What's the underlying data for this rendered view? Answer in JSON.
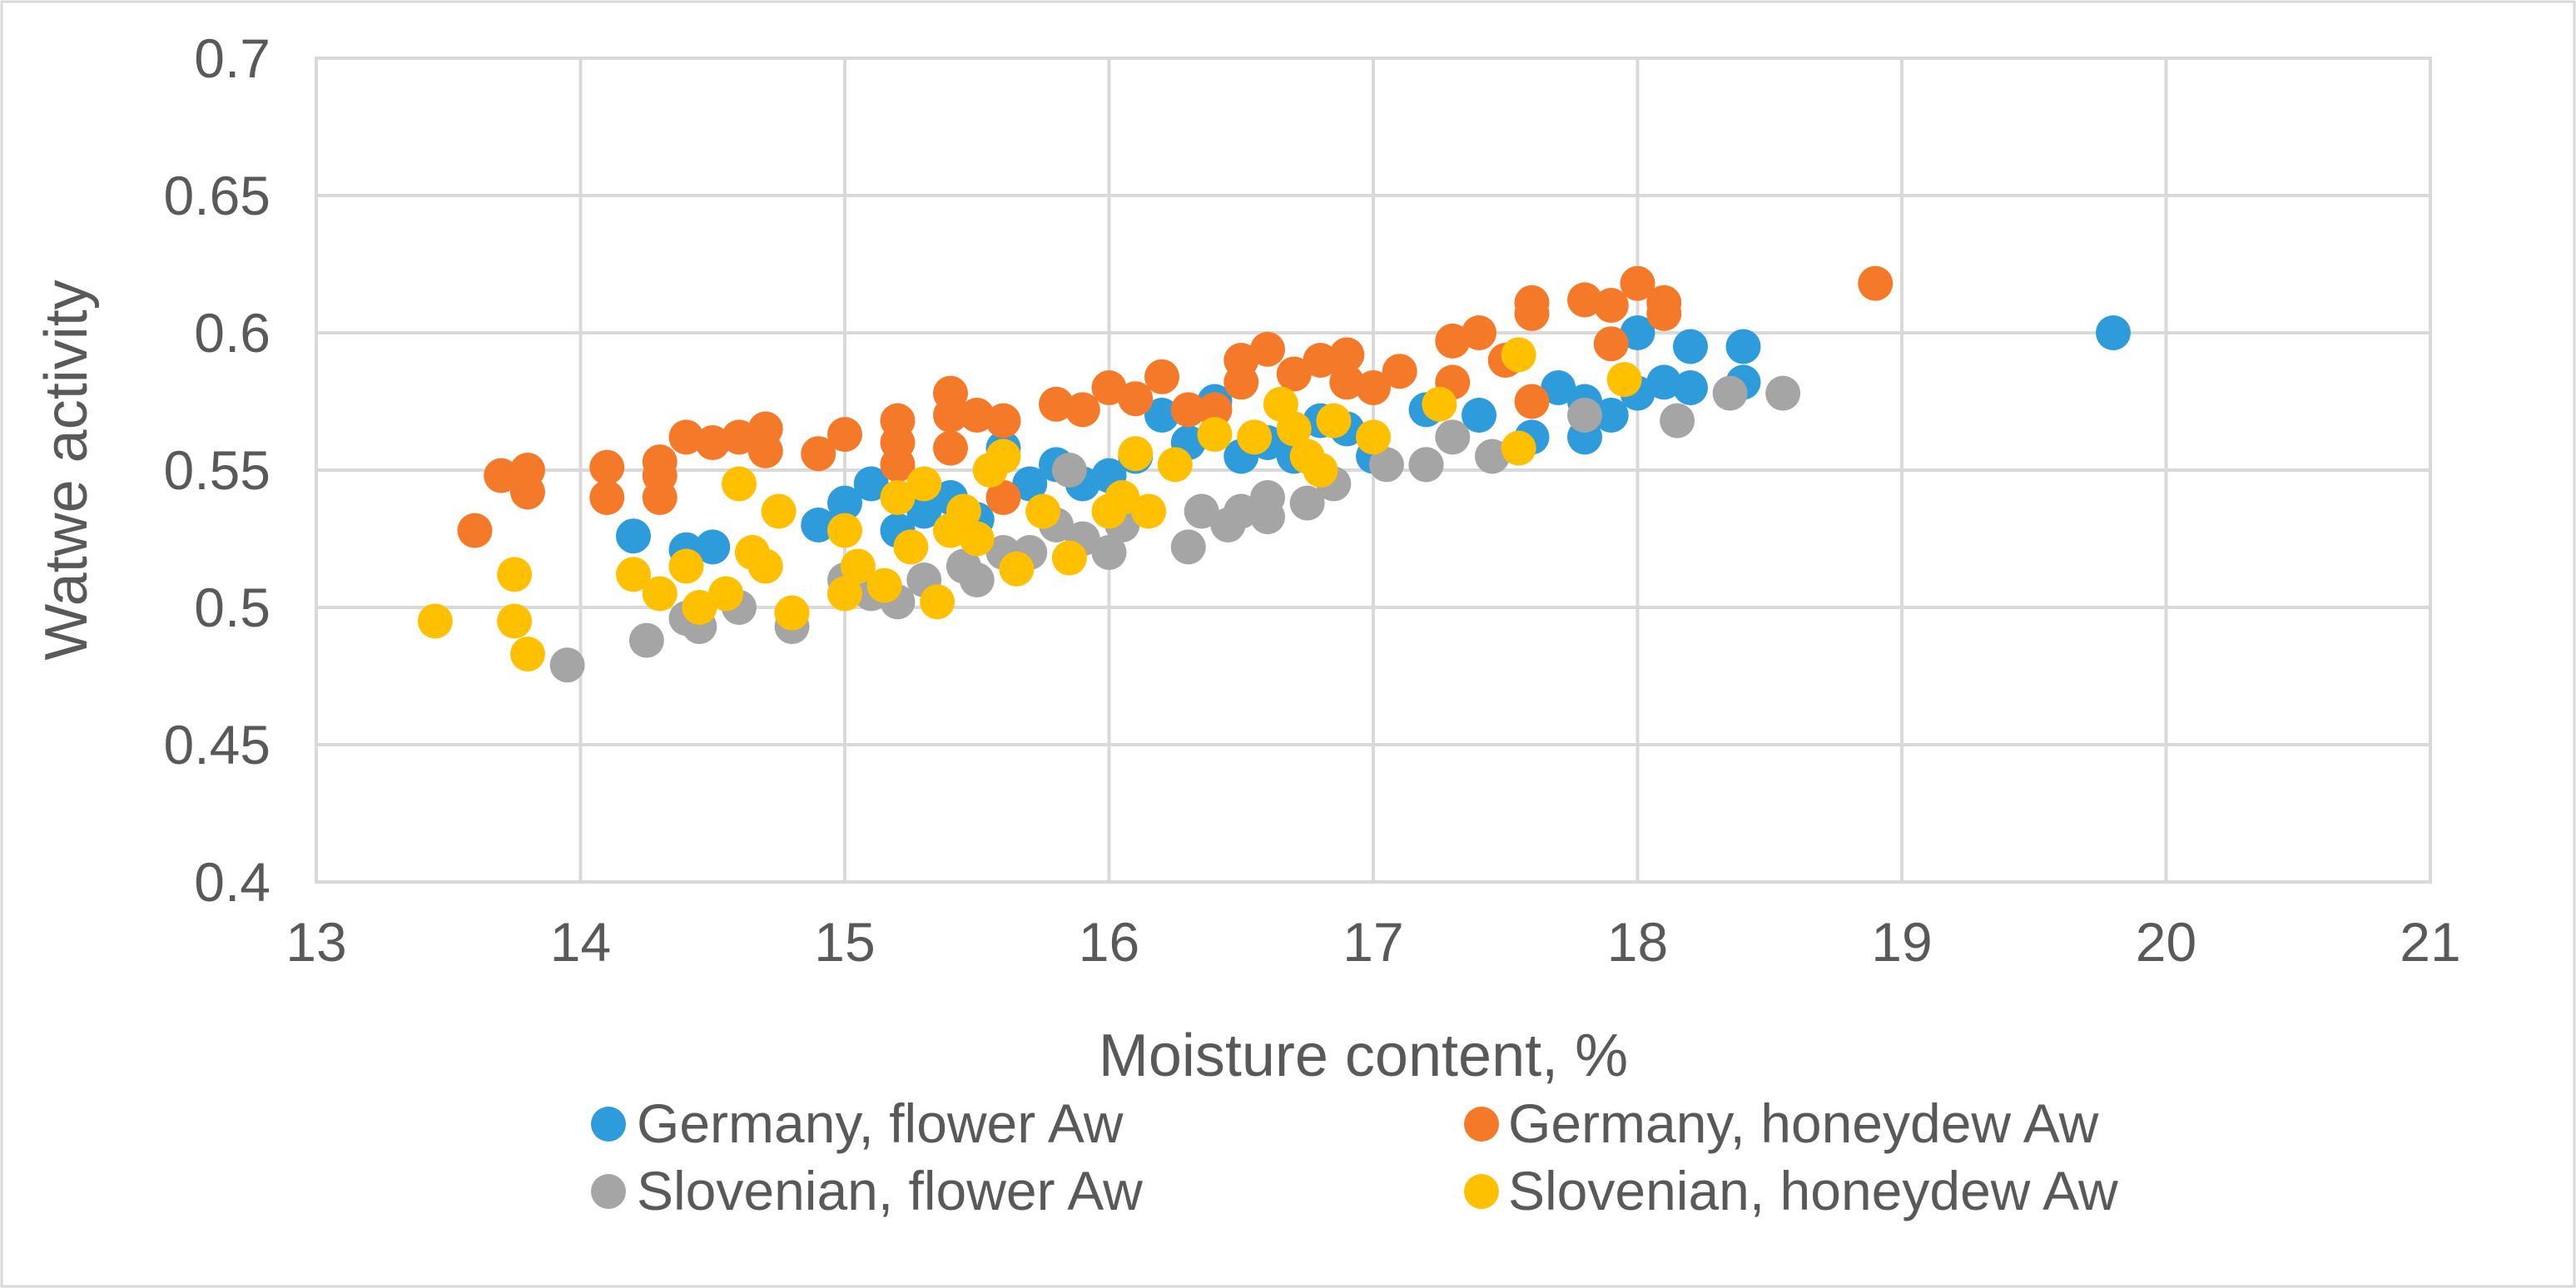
{
  "chart_data": {
    "type": "scatter",
    "title": "",
    "xlabel": "Moisture content, %",
    "ylabel": "Watwe activity",
    "xlim": [
      13,
      21
    ],
    "ylim": [
      0.4,
      0.7
    ],
    "x_ticks": [
      "13",
      "14",
      "15",
      "16",
      "17",
      "18",
      "19",
      "20",
      "21"
    ],
    "y_ticks": [
      "0.4",
      "0.45",
      "0.5",
      "0.55",
      "0.6",
      "0.65",
      "0.7"
    ],
    "grid": true,
    "legend_position": "bottom",
    "series": [
      {
        "name": "Germany,  flower Aw",
        "color": "#2E9BDA",
        "points": [
          [
            14.2,
            0.526
          ],
          [
            14.4,
            0.521
          ],
          [
            14.5,
            0.522
          ],
          [
            14.9,
            0.53
          ],
          [
            15,
            0.538
          ],
          [
            15.1,
            0.545
          ],
          [
            15.2,
            0.528
          ],
          [
            15.3,
            0.535
          ],
          [
            15.4,
            0.54
          ],
          [
            15.5,
            0.532
          ],
          [
            15.6,
            0.558
          ],
          [
            15.7,
            0.545
          ],
          [
            15.8,
            0.552
          ],
          [
            15.9,
            0.545
          ],
          [
            16,
            0.548
          ],
          [
            16.1,
            0.555
          ],
          [
            16.2,
            0.57
          ],
          [
            16.3,
            0.56
          ],
          [
            16.4,
            0.575
          ],
          [
            16.5,
            0.555
          ],
          [
            16.6,
            0.56
          ],
          [
            16.7,
            0.555
          ],
          [
            16.8,
            0.568
          ],
          [
            16.9,
            0.565
          ],
          [
            17,
            0.555
          ],
          [
            17.2,
            0.552
          ],
          [
            17.2,
            0.572
          ],
          [
            17.4,
            0.57
          ],
          [
            17.6,
            0.562
          ],
          [
            17.7,
            0.58
          ],
          [
            17.8,
            0.575
          ],
          [
            17.8,
            0.562
          ],
          [
            17.9,
            0.57
          ],
          [
            18,
            0.578
          ],
          [
            18,
            0.6
          ],
          [
            18.1,
            0.582
          ],
          [
            18.2,
            0.58
          ],
          [
            18.2,
            0.595
          ],
          [
            18.4,
            0.582
          ],
          [
            18.4,
            0.595
          ],
          [
            19.8,
            0.6
          ]
        ]
      },
      {
        "name": "Germany,  honeydew Aw",
        "color": "#F47A2A",
        "points": [
          [
            13.6,
            0.528
          ],
          [
            13.7,
            0.548
          ],
          [
            13.8,
            0.542
          ],
          [
            13.8,
            0.55
          ],
          [
            14.1,
            0.54
          ],
          [
            14.1,
            0.551
          ],
          [
            14.3,
            0.54
          ],
          [
            14.3,
            0.548
          ],
          [
            14.3,
            0.553
          ],
          [
            14.4,
            0.562
          ],
          [
            14.5,
            0.56
          ],
          [
            14.6,
            0.562
          ],
          [
            14.7,
            0.557
          ],
          [
            14.7,
            0.565
          ],
          [
            14.9,
            0.556
          ],
          [
            15,
            0.563
          ],
          [
            15.2,
            0.568
          ],
          [
            15.2,
            0.56
          ],
          [
            15.2,
            0.552
          ],
          [
            15.4,
            0.578
          ],
          [
            15.4,
            0.57
          ],
          [
            15.4,
            0.558
          ],
          [
            15.5,
            0.57
          ],
          [
            15.6,
            0.54
          ],
          [
            15.6,
            0.568
          ],
          [
            15.8,
            0.574
          ],
          [
            15.9,
            0.572
          ],
          [
            16,
            0.58
          ],
          [
            16.1,
            0.576
          ],
          [
            16.2,
            0.584
          ],
          [
            16.3,
            0.572
          ],
          [
            16.4,
            0.572
          ],
          [
            16.5,
            0.582
          ],
          [
            16.5,
            0.59
          ],
          [
            16.6,
            0.594
          ],
          [
            16.7,
            0.585
          ],
          [
            16.8,
            0.59
          ],
          [
            16.9,
            0.592
          ],
          [
            16.9,
            0.582
          ],
          [
            17,
            0.58
          ],
          [
            17.1,
            0.586
          ],
          [
            17.3,
            0.582
          ],
          [
            17.3,
            0.597
          ],
          [
            17.4,
            0.6
          ],
          [
            17.5,
            0.59
          ],
          [
            17.6,
            0.611
          ],
          [
            17.6,
            0.607
          ],
          [
            17.6,
            0.575
          ],
          [
            17.8,
            0.612
          ],
          [
            17.9,
            0.61
          ],
          [
            17.9,
            0.596
          ],
          [
            18,
            0.618
          ],
          [
            18.1,
            0.611
          ],
          [
            18.1,
            0.607
          ],
          [
            18.9,
            0.618
          ]
        ]
      },
      {
        "name": "Slovenian, flower Aw",
        "color": "#A5A5A5",
        "points": [
          [
            13.95,
            0.479
          ],
          [
            14.25,
            0.488
          ],
          [
            14.4,
            0.496
          ],
          [
            14.45,
            0.493
          ],
          [
            14.6,
            0.5
          ],
          [
            14.8,
            0.498
          ],
          [
            14.8,
            0.493
          ],
          [
            15,
            0.51
          ],
          [
            15.1,
            0.505
          ],
          [
            15.2,
            0.502
          ],
          [
            15.3,
            0.51
          ],
          [
            15.45,
            0.515
          ],
          [
            15.5,
            0.51
          ],
          [
            15.6,
            0.52
          ],
          [
            15.7,
            0.52
          ],
          [
            15.8,
            0.53
          ],
          [
            15.85,
            0.55
          ],
          [
            15.9,
            0.525
          ],
          [
            16,
            0.52
          ],
          [
            16.05,
            0.53
          ],
          [
            16.3,
            0.522
          ],
          [
            16.35,
            0.535
          ],
          [
            16.45,
            0.53
          ],
          [
            16.5,
            0.535
          ],
          [
            16.6,
            0.533
          ],
          [
            16.6,
            0.54
          ],
          [
            16.75,
            0.538
          ],
          [
            16.85,
            0.545
          ],
          [
            17.05,
            0.552
          ],
          [
            17.2,
            0.552
          ],
          [
            17.3,
            0.562
          ],
          [
            17.45,
            0.555
          ],
          [
            17.8,
            0.57
          ],
          [
            18.15,
            0.568
          ],
          [
            18.35,
            0.578
          ],
          [
            18.55,
            0.578
          ]
        ]
      },
      {
        "name": "Slovenian, honeydew Aw",
        "color": "#FFC000",
        "points": [
          [
            13.45,
            0.495
          ],
          [
            13.75,
            0.512
          ],
          [
            13.75,
            0.495
          ],
          [
            13.8,
            0.483
          ],
          [
            14.2,
            0.512
          ],
          [
            14.3,
            0.505
          ],
          [
            14.4,
            0.515
          ],
          [
            14.45,
            0.5
          ],
          [
            14.55,
            0.505
          ],
          [
            14.6,
            0.545
          ],
          [
            14.65,
            0.52
          ],
          [
            14.7,
            0.515
          ],
          [
            14.75,
            0.535
          ],
          [
            14.8,
            0.498
          ],
          [
            15,
            0.528
          ],
          [
            15,
            0.505
          ],
          [
            15.05,
            0.515
          ],
          [
            15.15,
            0.508
          ],
          [
            15.2,
            0.54
          ],
          [
            15.25,
            0.522
          ],
          [
            15.3,
            0.545
          ],
          [
            15.35,
            0.502
          ],
          [
            15.4,
            0.528
          ],
          [
            15.45,
            0.535
          ],
          [
            15.5,
            0.525
          ],
          [
            15.55,
            0.55
          ],
          [
            15.6,
            0.555
          ],
          [
            15.65,
            0.514
          ],
          [
            15.75,
            0.535
          ],
          [
            15.85,
            0.518
          ],
          [
            16,
            0.535
          ],
          [
            16.05,
            0.54
          ],
          [
            16.1,
            0.556
          ],
          [
            16.15,
            0.535
          ],
          [
            16.25,
            0.552
          ],
          [
            16.4,
            0.563
          ],
          [
            16.55,
            0.562
          ],
          [
            16.65,
            0.574
          ],
          [
            16.7,
            0.565
          ],
          [
            16.75,
            0.555
          ],
          [
            16.8,
            0.55
          ],
          [
            16.85,
            0.568
          ],
          [
            17,
            0.562
          ],
          [
            17.25,
            0.574
          ],
          [
            17.55,
            0.558
          ],
          [
            17.55,
            0.592
          ],
          [
            17.95,
            0.583
          ]
        ]
      }
    ]
  }
}
